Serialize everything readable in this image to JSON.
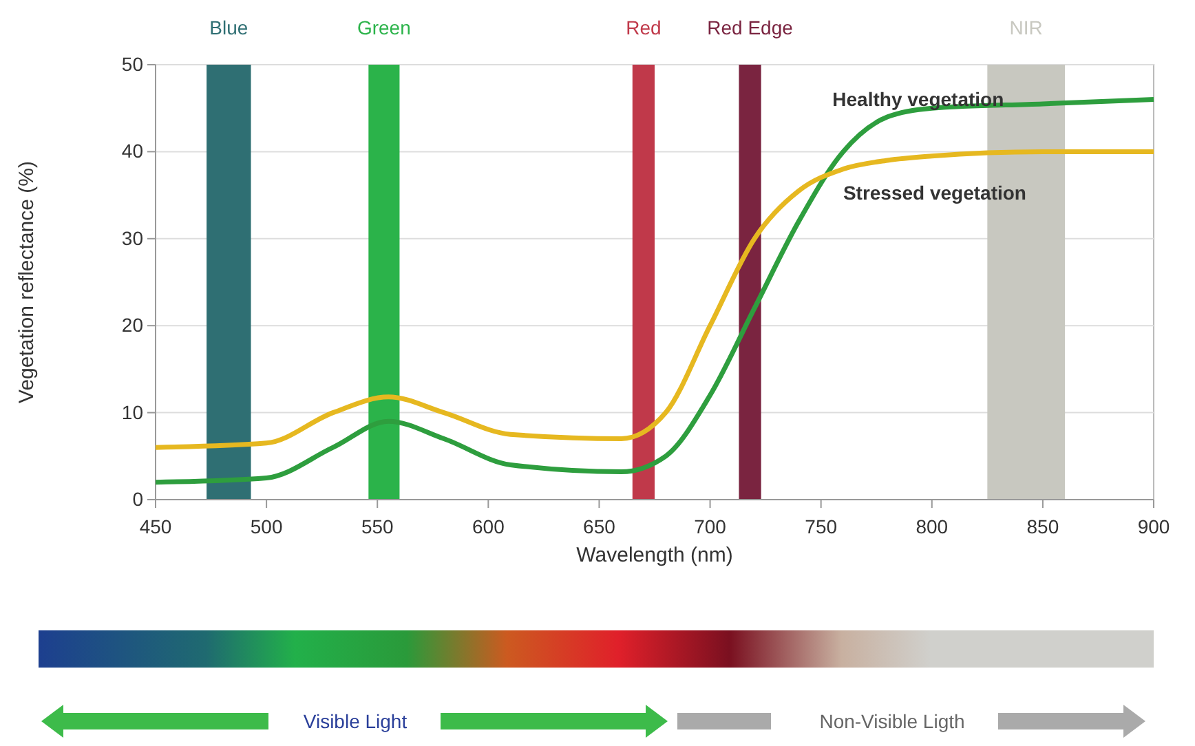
{
  "chart_data": {
    "type": "line",
    "xlabel": "Wavelength (nm)",
    "ylabel": "Vegetation reflectance (%)",
    "xlim": [
      450,
      900
    ],
    "xticks": [
      450,
      500,
      550,
      600,
      650,
      700,
      750,
      800,
      850,
      900
    ],
    "ylim": [
      0,
      50
    ],
    "yticks": [
      0,
      10,
      20,
      30,
      40,
      50
    ],
    "grid": "y",
    "series": [
      {
        "name": "Healthy vegetation",
        "color": "#2e9e3e",
        "x": [
          450,
          500,
          530,
          555,
          580,
          610,
          660,
          680,
          700,
          720,
          740,
          760,
          780,
          800,
          850,
          900
        ],
        "values": [
          2,
          2.5,
          6,
          9,
          7,
          4,
          3.2,
          5,
          12,
          22,
          32,
          40,
          44,
          45,
          45.5,
          46
        ]
      },
      {
        "name": "Stressed vegetation",
        "color": "#e6b820",
        "x": [
          450,
          500,
          530,
          555,
          580,
          610,
          660,
          680,
          700,
          720,
          740,
          760,
          780,
          800,
          850,
          900
        ],
        "values": [
          6,
          6.5,
          10,
          11.8,
          10,
          7.5,
          7,
          10,
          20,
          30,
          35.5,
          38,
          39,
          39.5,
          40,
          40
        ]
      }
    ],
    "bands": [
      {
        "axis": "x",
        "from": 473,
        "to": 493,
        "label": "Blue",
        "color": "#2f6f73"
      },
      {
        "axis": "x",
        "from": 546,
        "to": 560,
        "label": "Green",
        "color": "#2bb34a"
      },
      {
        "axis": "x",
        "from": 665,
        "to": 675,
        "label": "Red",
        "color": "#c0394a"
      },
      {
        "axis": "x",
        "from": 713,
        "to": 723,
        "label": "Red Edge",
        "color": "#7a2440"
      },
      {
        "axis": "x",
        "from": 825,
        "to": 860,
        "label": "NIR",
        "color": "#c8c8c0"
      }
    ],
    "annotations": [
      "Visible Light",
      "Non-Visible Ligth"
    ]
  }
}
